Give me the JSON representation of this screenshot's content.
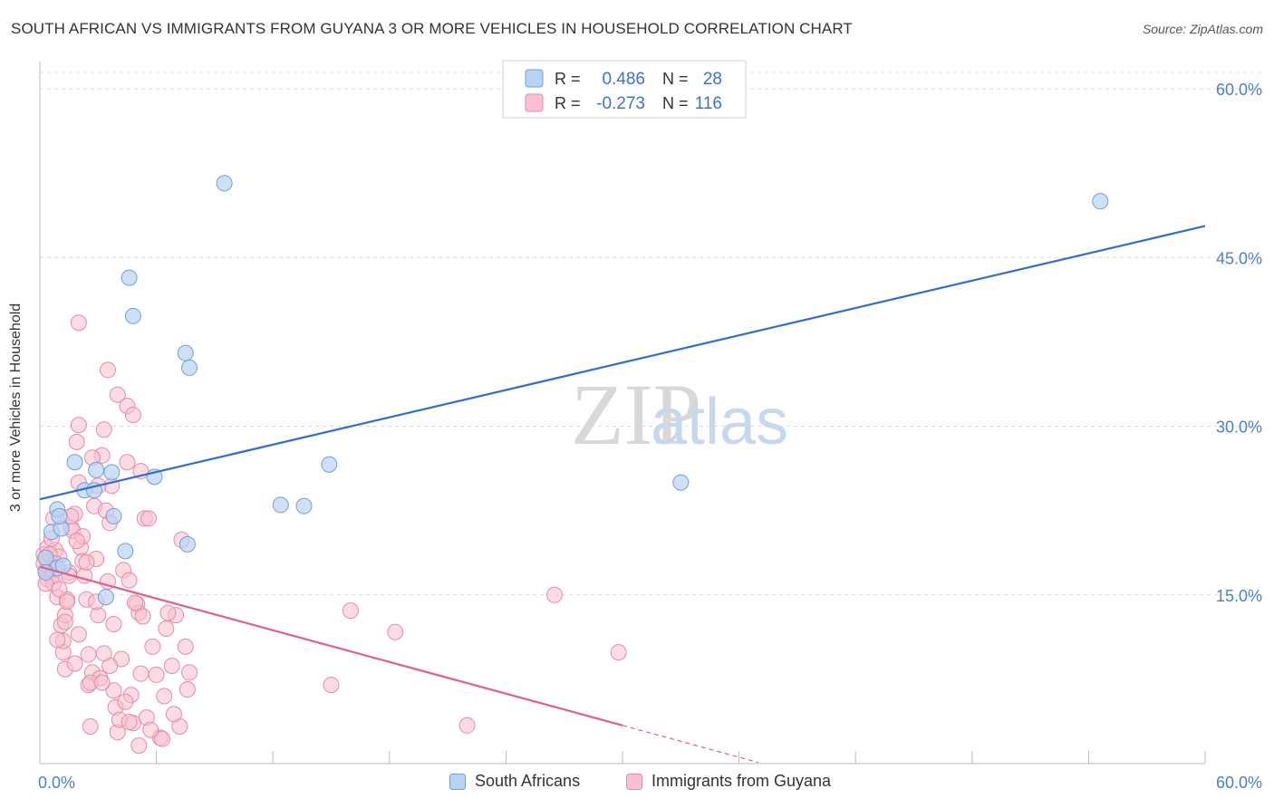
{
  "title": "SOUTH AFRICAN VS IMMIGRANTS FROM GUYANA 3 OR MORE VEHICLES IN HOUSEHOLD CORRELATION CHART",
  "source": "Source: ZipAtlas.com",
  "watermark": {
    "zip": "ZIP",
    "atlas": "atlas"
  },
  "legend_top": {
    "r_label": "R =",
    "n_label": "N =",
    "rows": [
      {
        "r": "0.486",
        "n": "28"
      },
      {
        "r": "-0.273",
        "n": "116"
      }
    ]
  },
  "legend_bottom": [
    "South Africans",
    "Immigrants from Guyana"
  ],
  "colors": {
    "blue_fill": "#b8d3f2",
    "blue_stroke": "#6f9fd8",
    "blue_line": "#2f6fcc",
    "pink_fill": "#f8c0d0",
    "pink_stroke": "#e88aa6",
    "pink_line": "#e0608a",
    "tick_label": "#4a7fd0"
  },
  "chart_data": {
    "type": "scatter",
    "xlabel": "",
    "ylabel": "3 or more Vehicles in Household",
    "xlim": [
      0,
      60
    ],
    "ylim": [
      0,
      60
    ],
    "x_tick_labels": [
      {
        "value": 0,
        "label": "0.0%"
      },
      {
        "value": 60,
        "label": "60.0%"
      }
    ],
    "y_tick_labels": [
      {
        "value": 15,
        "label": "15.0%"
      },
      {
        "value": 30,
        "label": "30.0%"
      },
      {
        "value": 45,
        "label": "45.0%"
      },
      {
        "value": 60,
        "label": "60.0%"
      }
    ],
    "grid": true,
    "legend_position": "top-center",
    "series": [
      {
        "name": "South Africans",
        "r": 0.486,
        "n": 28,
        "trend": {
          "x": [
            0,
            60
          ],
          "y": [
            23.5,
            47.8
          ]
        },
        "points": [
          [
            0.9,
            22.6
          ],
          [
            0.6,
            20.6
          ],
          [
            1.1,
            20.9
          ],
          [
            1.0,
            22.0
          ],
          [
            0.9,
            17.4
          ],
          [
            1.8,
            26.8
          ],
          [
            2.3,
            24.3
          ],
          [
            2.8,
            24.3
          ],
          [
            2.9,
            26.1
          ],
          [
            3.7,
            25.9
          ],
          [
            3.8,
            22.0
          ],
          [
            4.4,
            18.9
          ],
          [
            3.4,
            14.8
          ],
          [
            4.6,
            43.2
          ],
          [
            4.8,
            39.8
          ],
          [
            7.5,
            36.5
          ],
          [
            7.7,
            35.2
          ],
          [
            5.9,
            25.5
          ],
          [
            7.6,
            19.5
          ],
          [
            9.5,
            51.6
          ],
          [
            12.4,
            23.0
          ],
          [
            13.6,
            22.9
          ],
          [
            14.9,
            26.6
          ],
          [
            33.0,
            25.0
          ],
          [
            54.6,
            50.0
          ],
          [
            0.3,
            18.3
          ],
          [
            0.3,
            17.0
          ],
          [
            1.2,
            17.6
          ]
        ]
      },
      {
        "name": "Immigrants from Guyana",
        "r": -0.273,
        "n": 116,
        "trend": {
          "x": [
            0,
            30
          ],
          "y": [
            17.5,
            3.4
          ]
        },
        "trend_dashed": {
          "x": [
            30,
            37
          ],
          "y": [
            3.4,
            0.1
          ]
        },
        "points": [
          [
            0.2,
            18.6
          ],
          [
            0.3,
            17.2
          ],
          [
            0.4,
            19.2
          ],
          [
            0.4,
            16.4
          ],
          [
            0.5,
            18.0
          ],
          [
            0.5,
            17.4
          ],
          [
            0.6,
            16.6
          ],
          [
            0.7,
            16.0
          ],
          [
            0.8,
            19.0
          ],
          [
            0.9,
            14.8
          ],
          [
            1.0,
            18.4
          ],
          [
            1.1,
            12.3
          ],
          [
            1.2,
            9.9
          ],
          [
            1.2,
            10.9
          ],
          [
            1.3,
            13.2
          ],
          [
            1.3,
            8.4
          ],
          [
            1.4,
            14.6
          ],
          [
            1.5,
            17.0
          ],
          [
            1.6,
            21.0
          ],
          [
            1.7,
            20.7
          ],
          [
            1.8,
            22.2
          ],
          [
            1.9,
            28.6
          ],
          [
            2.0,
            30.1
          ],
          [
            2.0,
            25.0
          ],
          [
            2.0,
            39.2
          ],
          [
            2.1,
            19.2
          ],
          [
            2.2,
            18.0
          ],
          [
            2.3,
            16.7
          ],
          [
            2.4,
            14.6
          ],
          [
            2.5,
            9.7
          ],
          [
            2.5,
            7.0
          ],
          [
            2.6,
            3.3
          ],
          [
            2.7,
            8.1
          ],
          [
            2.8,
            22.9
          ],
          [
            2.9,
            18.2
          ],
          [
            3.0,
            13.2
          ],
          [
            3.1,
            7.6
          ],
          [
            3.2,
            27.4
          ],
          [
            3.3,
            29.7
          ],
          [
            3.4,
            22.5
          ],
          [
            3.5,
            16.2
          ],
          [
            3.6,
            21.4
          ],
          [
            3.7,
            24.7
          ],
          [
            3.8,
            12.4
          ],
          [
            3.9,
            5.0
          ],
          [
            4.0,
            2.8
          ],
          [
            4.1,
            3.9
          ],
          [
            4.2,
            9.3
          ],
          [
            4.3,
            17.2
          ],
          [
            4.5,
            26.8
          ],
          [
            4.6,
            16.3
          ],
          [
            4.7,
            6.1
          ],
          [
            4.8,
            3.6
          ],
          [
            5.0,
            14.2
          ],
          [
            5.1,
            13.4
          ],
          [
            5.2,
            8.0
          ],
          [
            5.3,
            13.1
          ],
          [
            5.4,
            21.8
          ],
          [
            5.5,
            4.1
          ],
          [
            5.6,
            21.8
          ],
          [
            5.8,
            10.4
          ],
          [
            6.0,
            7.9
          ],
          [
            6.2,
            2.3
          ],
          [
            6.4,
            6.0
          ],
          [
            6.5,
            12.0
          ],
          [
            6.8,
            8.7
          ],
          [
            7.0,
            13.2
          ],
          [
            7.2,
            3.3
          ],
          [
            7.3,
            19.9
          ],
          [
            7.5,
            10.4
          ],
          [
            7.6,
            6.6
          ],
          [
            7.7,
            8.1
          ],
          [
            3.5,
            35.0
          ],
          [
            4.0,
            32.8
          ],
          [
            4.5,
            31.8
          ],
          [
            4.8,
            31.0
          ],
          [
            3.0,
            24.7
          ],
          [
            2.7,
            27.2
          ],
          [
            5.2,
            26.0
          ],
          [
            1.6,
            22.0
          ],
          [
            1.3,
            12.6
          ],
          [
            0.9,
            11.0
          ],
          [
            2.2,
            20.2
          ],
          [
            2.9,
            14.4
          ],
          [
            3.6,
            8.7
          ],
          [
            4.4,
            5.5
          ],
          [
            5.1,
            1.6
          ],
          [
            6.3,
            2.2
          ],
          [
            0.6,
            20.0
          ],
          [
            1.8,
            8.9
          ],
          [
            2.4,
            17.9
          ],
          [
            3.3,
            9.8
          ],
          [
            4.9,
            14.3
          ],
          [
            6.6,
            13.4
          ],
          [
            16.0,
            13.6
          ],
          [
            18.3,
            11.7
          ],
          [
            15.0,
            7.0
          ],
          [
            22.0,
            3.4
          ],
          [
            26.5,
            15.0
          ],
          [
            29.8,
            9.9
          ],
          [
            0.3,
            16.0
          ],
          [
            0.7,
            21.8
          ],
          [
            1.0,
            15.5
          ],
          [
            1.4,
            14.4
          ],
          [
            1.9,
            19.8
          ],
          [
            2.6,
            7.2
          ],
          [
            3.8,
            6.5
          ],
          [
            4.6,
            3.7
          ],
          [
            5.7,
            3.0
          ],
          [
            6.9,
            4.4
          ],
          [
            0.2,
            17.8
          ],
          [
            0.5,
            18.6
          ],
          [
            0.8,
            17.8
          ],
          [
            1.5,
            16.7
          ],
          [
            2.0,
            11.5
          ],
          [
            3.2,
            7.2
          ]
        ]
      }
    ]
  }
}
